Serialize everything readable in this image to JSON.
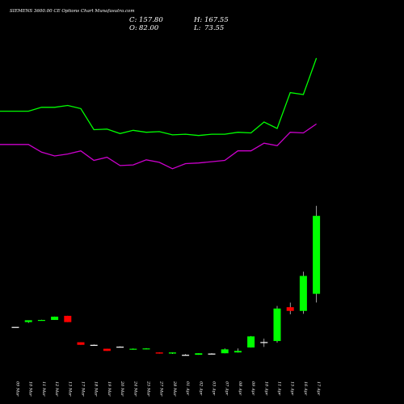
{
  "header": {
    "title": "SIEMENS 3600.00 CE Options  Chart Munafasutra.com",
    "open_label": "O:",
    "open_value": "82.00",
    "close_label": "C:",
    "close_value": "157.80",
    "high_label": "H:",
    "high_value": "167.55",
    "low_label": "L:",
    "low_value": "73.55"
  },
  "colors": {
    "background": "#000000",
    "bull": "#00ff00",
    "bear": "#ff0000",
    "doji": "#ffffff",
    "wick": "#ffffff",
    "ma_fast": "#00ff00",
    "ma_slow": "#cc00cc",
    "text": "#ffffff"
  },
  "chart_data": {
    "type": "candlestick",
    "title": "SIEMENS 3600.00 CE Options  Chart Munafasutra.com",
    "xlabel": "",
    "ylabel": "",
    "ylim": [
      0,
      165
    ],
    "grid": false,
    "categories": [
      "09 Mar",
      "10 Mar",
      "11 Mar",
      "12 Mar",
      "13 Mar",
      "17 Mar",
      "18 Mar",
      "19 Mar",
      "20 Mar",
      "24 Mar",
      "25 Mar",
      "27 Mar",
      "28 Mar",
      "01 Apr",
      "02 Apr",
      "03 Apr",
      "07 Apr",
      "08 Apr",
      "09 Apr",
      "10 Apr",
      "11 Apr",
      "15 Apr",
      "16 Apr",
      "17 Apr"
    ],
    "candles": [
      {
        "x": "09 Mar",
        "open": 49.8,
        "high": 49.8,
        "low": 49.8,
        "close": 49.8
      },
      {
        "x": "10 Mar",
        "open": 54.5,
        "high": 55.7,
        "low": 53.7,
        "close": 56.3
      },
      {
        "x": "11 Mar",
        "open": 56.3,
        "high": 56.8,
        "low": 56.1,
        "close": 56.6
      },
      {
        "x": "12 Mar",
        "open": 56.6,
        "high": 59.8,
        "low": 56.6,
        "close": 59.8
      },
      {
        "x": "13 Mar",
        "open": 60.6,
        "high": 60.6,
        "low": 54.5,
        "close": 54.5
      },
      {
        "x": "17 Mar",
        "open": 34.9,
        "high": 34.9,
        "low": 32.4,
        "close": 32.4
      },
      {
        "x": "18 Mar",
        "open": 32.4,
        "high": 32.8,
        "low": 32.0,
        "close": 32.4
      },
      {
        "x": "19 Mar",
        "open": 28.6,
        "high": 28.6,
        "low": 26.5,
        "close": 26.5
      },
      {
        "x": "20 Mar",
        "open": 30.6,
        "high": 30.9,
        "low": 30.3,
        "close": 30.6
      },
      {
        "x": "24 Mar",
        "open": 28.0,
        "high": 28.9,
        "low": 27.6,
        "close": 28.6
      },
      {
        "x": "25 Mar",
        "open": 28.6,
        "high": 29.2,
        "low": 28.0,
        "close": 28.9
      },
      {
        "x": "27 Mar",
        "open": 25.0,
        "high": 25.0,
        "low": 23.9,
        "close": 23.9
      },
      {
        "x": "28 Mar",
        "open": 23.9,
        "high": 25.0,
        "low": 23.6,
        "close": 25.0
      },
      {
        "x": "01 Apr",
        "open": 22.7,
        "high": 23.4,
        "low": 22.4,
        "close": 22.7
      },
      {
        "x": "02 Apr",
        "open": 22.7,
        "high": 24.2,
        "low": 22.7,
        "close": 24.2
      },
      {
        "x": "03 Apr",
        "open": 23.9,
        "high": 24.3,
        "low": 23.6,
        "close": 23.9
      },
      {
        "x": "07 Apr",
        "open": 24.2,
        "high": 28.9,
        "low": 24.2,
        "close": 28.0
      },
      {
        "x": "08 Apr",
        "open": 25.0,
        "high": 28.9,
        "low": 24.8,
        "close": 26.5
      },
      {
        "x": "09 Apr",
        "open": 29.8,
        "high": 41.0,
        "low": 29.8,
        "close": 40.6
      },
      {
        "x": "10 Apr",
        "open": 35.1,
        "high": 38.4,
        "low": 30.3,
        "close": 35.1
      },
      {
        "x": "11 Apr",
        "open": 36.1,
        "high": 70.2,
        "low": 34.5,
        "close": 67.7
      },
      {
        "x": "15 Apr",
        "open": 69.0,
        "high": 73.5,
        "low": 62.1,
        "close": 65.4
      },
      {
        "x": "16 Apr",
        "open": 65.4,
        "high": 103.5,
        "low": 62.6,
        "close": 99.4
      },
      {
        "x": "17 Apr",
        "open": 82.0,
        "high": 167.55,
        "low": 73.55,
        "close": 157.8
      }
    ],
    "overlay_series": [
      {
        "values": [
          142.0,
          142.0,
          148.0,
          148.0,
          151.0,
          146.0,
          113.0,
          114.0,
          107.0,
          112.0,
          109.0,
          110.0,
          105.0,
          106.0,
          104.0,
          106.0,
          106.0,
          109.0,
          108.0,
          125.0,
          115.0,
          171.0,
          168.0,
          225.0
        ]
      },
      {
        "values": [
          90.0,
          90.0,
          78.0,
          72.0,
          75.0,
          80.0,
          65.0,
          70.0,
          57.0,
          58.0,
          66.0,
          62.0,
          52.0,
          60.0,
          61.0,
          63.0,
          65.0,
          80.0,
          80.0,
          92.0,
          88.0,
          109.0,
          108.0,
          122.0
        ]
      }
    ]
  }
}
